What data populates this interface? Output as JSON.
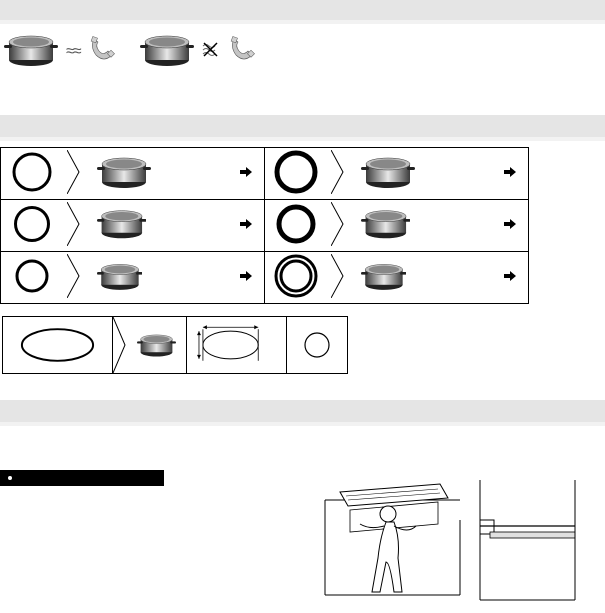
{
  "colors": {
    "band": "#e5e5e5",
    "bandLight": "#f2f2f2",
    "text": "#000000",
    "potDark": "#3b3b3b",
    "potLight": "#c8c8c8",
    "magnet": "#b0b0b0",
    "bg": "#ffffff"
  },
  "compat": {
    "good": {
      "wave": "≈≈",
      "magnetAttracted": true
    },
    "bad": {
      "cross": "✕",
      "magnetAttracted": false
    }
  },
  "sizeTable": {
    "rows": [
      {
        "ringDia": 36,
        "ringStroke": 3,
        "potScale": 1.0,
        "ringDiaB": 38,
        "ringStrokeB": 5,
        "potScaleB": 1.0
      },
      {
        "ringDia": 33,
        "ringStroke": 3,
        "potScale": 0.92,
        "ringDiaB": 34,
        "ringStrokeB": 5,
        "potScaleB": 0.92
      },
      {
        "ringDia": 30,
        "ringStroke": 3,
        "potScale": 0.85,
        "ringDiaB": 40,
        "ringStrokeB": 3,
        "potScaleB": 0.85
      }
    ],
    "arrow": "▸",
    "minLabel": ""
  },
  "ovalRow": {
    "ovalW": 62,
    "ovalH": 32,
    "smallDia": 24
  },
  "warning": {
    "label": ""
  },
  "install": {
    "desc": "person-installing-hob"
  }
}
